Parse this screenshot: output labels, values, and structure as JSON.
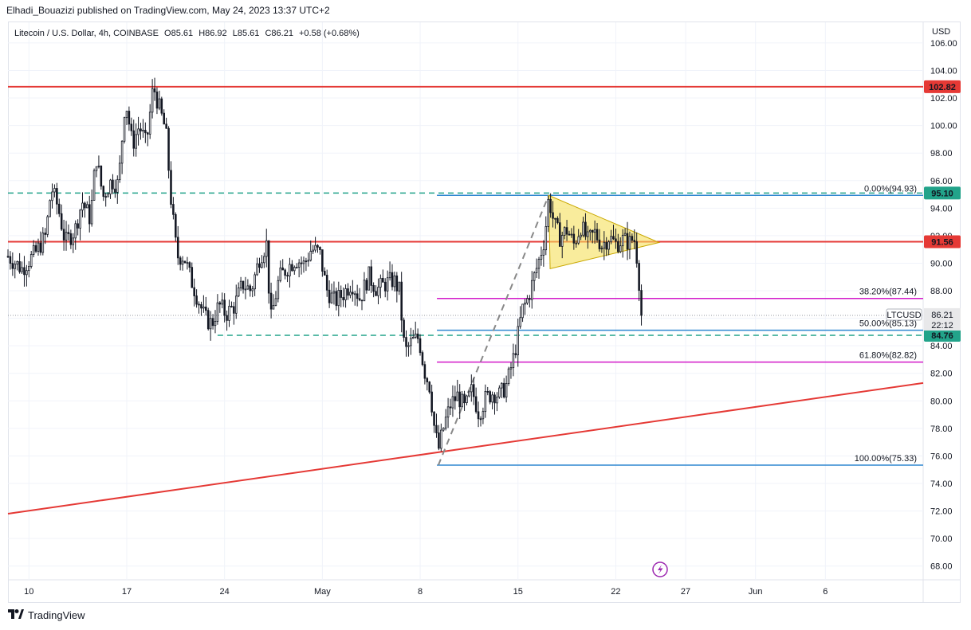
{
  "header": {
    "publish_line": "Elhadi_Bouazizi published on TradingView.com, May 24, 2023 13:37 UTC+2"
  },
  "legend": {
    "symbol": "Litecoin / U.S. Dollar, 4h, COINBASE",
    "o_label": "O",
    "o_value": "85.61",
    "h_label": "H",
    "h_value": "86.92",
    "l_label": "L",
    "l_value": "85.61",
    "c_label": "C",
    "c_value": "86.21",
    "change": "+0.58 (+0.68%)"
  },
  "footer": {
    "brand": "TradingView"
  },
  "colors": {
    "red_line": "#e53935",
    "green_dash": "#22a38a",
    "fib_blue": "#2f87d0",
    "fib_magenta": "#d219c9",
    "triangle_fill": "#f5e05a",
    "candle": "#131722"
  },
  "chart_data": {
    "type": "candlestick",
    "symbol": "LTCUSD",
    "timeframe": "4h",
    "currency": "USD",
    "ylim": [
      67.0,
      107.5
    ],
    "y_ticks": [
      "68.00",
      "70.00",
      "72.00",
      "74.00",
      "76.00",
      "78.00",
      "80.00",
      "82.00",
      "84.00",
      "86.00",
      "88.00",
      "90.00",
      "92.00",
      "94.00",
      "96.00",
      "98.00",
      "100.00",
      "102.00",
      "104.00",
      "106.00"
    ],
    "x_ticks": [
      {
        "label": "10",
        "day": 10
      },
      {
        "label": "17",
        "day": 17
      },
      {
        "label": "24",
        "day": 24
      },
      {
        "label": "May",
        "day": 31
      },
      {
        "label": "8",
        "day": 38
      },
      {
        "label": "15",
        "day": 45
      },
      {
        "label": "22",
        "day": 52
      },
      {
        "label": "27",
        "day": 57
      },
      {
        "label": "Jun",
        "day": 62
      },
      {
        "label": "6",
        "day": 67
      }
    ],
    "x_range_days": [
      8.5,
      74
    ],
    "close_path": [
      {
        "d": 8.5,
        "p": 90.5
      },
      {
        "d": 9.5,
        "p": 89.6
      },
      {
        "d": 10.5,
        "p": 90.8
      },
      {
        "d": 11.2,
        "p": 92.0
      },
      {
        "d": 11.6,
        "p": 95.5
      },
      {
        "d": 12.1,
        "p": 94.0
      },
      {
        "d": 12.6,
        "p": 91.5
      },
      {
        "d": 13.3,
        "p": 92.4
      },
      {
        "d": 13.8,
        "p": 94.5
      },
      {
        "d": 14.4,
        "p": 93.2
      },
      {
        "d": 14.8,
        "p": 97.8
      },
      {
        "d": 15.3,
        "p": 94.8
      },
      {
        "d": 15.9,
        "p": 96.0
      },
      {
        "d": 16.4,
        "p": 95.7
      },
      {
        "d": 16.9,
        "p": 102.0
      },
      {
        "d": 17.4,
        "p": 98.6
      },
      {
        "d": 17.9,
        "p": 100.0
      },
      {
        "d": 18.4,
        "p": 98.6
      },
      {
        "d": 18.9,
        "p": 102.9
      },
      {
        "d": 19.4,
        "p": 101.0
      },
      {
        "d": 19.8,
        "p": 99.6
      },
      {
        "d": 20.2,
        "p": 94.2
      },
      {
        "d": 20.6,
        "p": 90.5
      },
      {
        "d": 21.1,
        "p": 90.5
      },
      {
        "d": 21.6,
        "p": 88.8
      },
      {
        "d": 22.1,
        "p": 87.4
      },
      {
        "d": 22.6,
        "p": 86.0
      },
      {
        "d": 23.1,
        "p": 85.6
      },
      {
        "d": 23.6,
        "p": 87.0
      },
      {
        "d": 24.1,
        "p": 86.3
      },
      {
        "d": 24.7,
        "p": 86.9
      },
      {
        "d": 25.3,
        "p": 88.5
      },
      {
        "d": 25.9,
        "p": 88.0
      },
      {
        "d": 26.5,
        "p": 90.4
      },
      {
        "d": 27.0,
        "p": 91.4
      },
      {
        "d": 27.3,
        "p": 85.8
      },
      {
        "d": 27.9,
        "p": 88.9
      },
      {
        "d": 28.5,
        "p": 89.7
      },
      {
        "d": 29.1,
        "p": 90.3
      },
      {
        "d": 29.7,
        "p": 89.9
      },
      {
        "d": 30.2,
        "p": 91.0
      },
      {
        "d": 30.8,
        "p": 90.8
      },
      {
        "d": 31.3,
        "p": 88.1
      },
      {
        "d": 31.9,
        "p": 87.2
      },
      {
        "d": 32.5,
        "p": 87.8
      },
      {
        "d": 33.1,
        "p": 88.6
      },
      {
        "d": 33.7,
        "p": 87.4
      },
      {
        "d": 34.3,
        "p": 89.1
      },
      {
        "d": 34.9,
        "p": 88.1
      },
      {
        "d": 35.5,
        "p": 88.5
      },
      {
        "d": 36.1,
        "p": 88.8
      },
      {
        "d": 36.5,
        "p": 88.0
      },
      {
        "d": 36.9,
        "p": 83.5
      },
      {
        "d": 37.4,
        "p": 84.3
      },
      {
        "d": 37.9,
        "p": 84.6
      },
      {
        "d": 38.3,
        "p": 82.2
      },
      {
        "d": 38.7,
        "p": 81.0
      },
      {
        "d": 39.0,
        "p": 78.2
      },
      {
        "d": 39.3,
        "p": 76.4
      },
      {
        "d": 39.7,
        "p": 78.2
      },
      {
        "d": 40.2,
        "p": 79.8
      },
      {
        "d": 40.7,
        "p": 80.4
      },
      {
        "d": 41.2,
        "p": 79.4
      },
      {
        "d": 41.7,
        "p": 80.8
      },
      {
        "d": 42.2,
        "p": 79.1
      },
      {
        "d": 42.7,
        "p": 80.2
      },
      {
        "d": 43.2,
        "p": 80.6
      },
      {
        "d": 43.7,
        "p": 80.4
      },
      {
        "d": 44.2,
        "p": 81.2
      },
      {
        "d": 44.7,
        "p": 83.2
      },
      {
        "d": 45.0,
        "p": 84.8
      },
      {
        "d": 45.3,
        "p": 86.6
      },
      {
        "d": 45.7,
        "p": 87.4
      },
      {
        "d": 46.1,
        "p": 88.8
      },
      {
        "d": 46.5,
        "p": 90.2
      },
      {
        "d": 46.9,
        "p": 91.8
      },
      {
        "d": 47.2,
        "p": 94.8
      },
      {
        "d": 47.6,
        "p": 92.8
      },
      {
        "d": 48.0,
        "p": 91.9
      },
      {
        "d": 48.5,
        "p": 92.4
      },
      {
        "d": 49.0,
        "p": 91.4
      },
      {
        "d": 49.5,
        "p": 92.7
      },
      {
        "d": 50.0,
        "p": 91.6
      },
      {
        "d": 50.5,
        "p": 92.2
      },
      {
        "d": 51.0,
        "p": 91.3
      },
      {
        "d": 51.5,
        "p": 91.9
      },
      {
        "d": 52.0,
        "p": 91.4
      },
      {
        "d": 52.5,
        "p": 91.7
      },
      {
        "d": 53.0,
        "p": 91.5
      },
      {
        "d": 53.3,
        "p": 91.9
      },
      {
        "d": 53.6,
        "p": 89.8
      },
      {
        "d": 53.8,
        "p": 86.5
      },
      {
        "d": 53.95,
        "p": 86.21
      }
    ],
    "horizontal_lines": [
      {
        "name": "resistance-upper",
        "price": 102.82,
        "label": "102.82",
        "style": "solid",
        "color": "#e53935"
      },
      {
        "name": "resistance-mid",
        "price": 91.56,
        "label": "91.56",
        "style": "solid",
        "color": "#e53935"
      },
      {
        "name": "dashed-upper",
        "price": 95.1,
        "label": "95.10",
        "style": "dashed",
        "color": "#22a38a"
      },
      {
        "name": "dashed-lower",
        "price": 84.76,
        "label": "84.76",
        "style": "dashed",
        "color": "#22a38a"
      }
    ],
    "fib_levels": [
      {
        "label": "0.00%(94.93)",
        "price": 94.93,
        "color": "#2f87d0"
      },
      {
        "label": "38.20%(87.44)",
        "price": 87.44,
        "color": "#d219c9"
      },
      {
        "label": "50.00%(85.13)",
        "price": 85.13,
        "color": "#2f87d0"
      },
      {
        "label": "61.80%(82.82)",
        "price": 82.82,
        "color": "#d219c9"
      },
      {
        "label": "100.00%(75.33)",
        "price": 75.33,
        "color": "#2f87d0"
      }
    ],
    "fib_start_day": 39.2,
    "trendline": {
      "from": {
        "d": 8.5,
        "p": 71.8
      },
      "to": {
        "d": 74,
        "p": 81.3
      }
    },
    "fib_anchor_line": {
      "from": {
        "d": 39.3,
        "p": 75.33
      },
      "to": {
        "d": 47.2,
        "p": 94.93
      }
    },
    "triangle": [
      {
        "d": 47.2,
        "p": 94.93
      },
      {
        "d": 55.1,
        "p": 91.5
      },
      {
        "d": 47.3,
        "p": 89.6
      }
    ],
    "last_price": {
      "symbol": "LTCUSD",
      "price": 86.21,
      "label": "86.21",
      "countdown": "22:12"
    },
    "axis_currency_label": "USD"
  }
}
